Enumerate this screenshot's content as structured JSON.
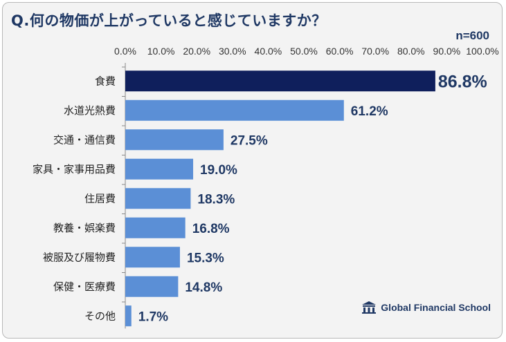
{
  "chart_data": {
    "type": "bar",
    "orientation": "horizontal",
    "title": "Q.何の物価が上がっていると感じていますか？",
    "sample_size": "n=600",
    "categories": [
      "食費",
      "水道光熱費",
      "交通・通信費",
      "家具・家事用品費",
      "住居費",
      "教養・娯楽費",
      "被服及び履物費",
      "保健・医療費",
      "その他"
    ],
    "values": [
      86.8,
      61.2,
      27.5,
      19.0,
      18.3,
      16.8,
      15.3,
      14.8,
      1.7
    ],
    "value_labels": [
      "86.8%",
      "61.2%",
      "27.5%",
      "19.0%",
      "18.3%",
      "16.8%",
      "15.3%",
      "14.8%",
      "1.7%"
    ],
    "xlim": [
      0,
      100
    ],
    "xticks": [
      "0.0%",
      "10.0%",
      "20.0%",
      "30.0%",
      "40.0%",
      "50.0%",
      "60.0%",
      "70.0%",
      "80.0%",
      "90.0%",
      "100.0%"
    ],
    "highlight_color": "#0f1f5c",
    "bar_color": "#5b8fd6"
  },
  "brand": {
    "name": "Global Financial School",
    "icon": "school-building-icon",
    "color": "#1f3864"
  }
}
